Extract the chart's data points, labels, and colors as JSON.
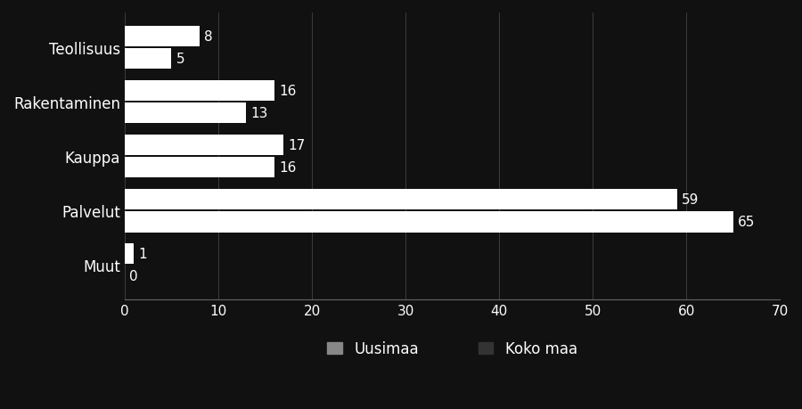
{
  "categories": [
    "Teollisuus",
    "Rakentaminen",
    "Kauppa",
    "Palvelut",
    "Muut"
  ],
  "uusimaa": [
    5,
    13,
    16,
    65,
    0
  ],
  "koko_maa": [
    8,
    16,
    17,
    59,
    1
  ],
  "uusimaa_color": "#ffffff",
  "koko_maa_color": "#ffffff",
  "uusimaa_legend_color": "#888888",
  "koko_maa_legend_color": "#333333",
  "background_color": "#111111",
  "text_color": "#ffffff",
  "bar_height": 0.38,
  "bar_gap": 0.04,
  "xlim": [
    0,
    70
  ],
  "xticks": [
    0,
    10,
    20,
    30,
    40,
    50,
    60,
    70
  ],
  "legend_labels": [
    "Uusimaa",
    "Koko maa"
  ],
  "label_fontsize": 12,
  "tick_fontsize": 11,
  "annotation_fontsize": 11
}
